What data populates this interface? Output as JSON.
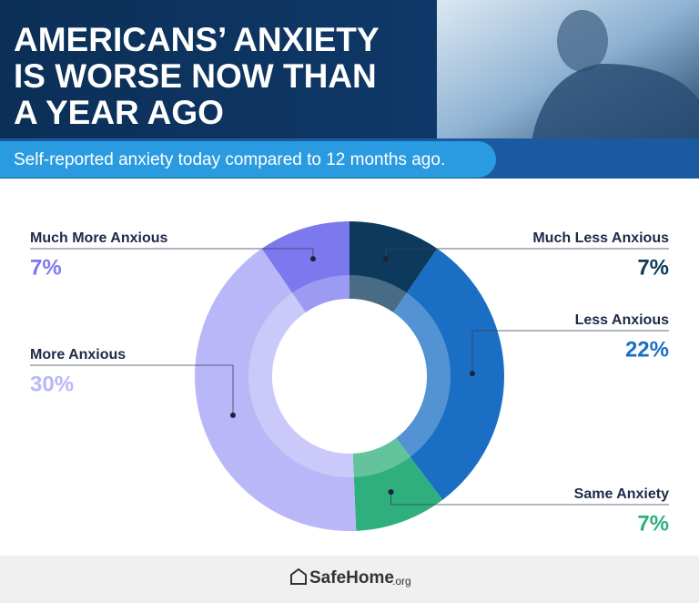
{
  "chart_data": {
    "type": "pie",
    "title": [
      "AMERICANS’ ANXIETY",
      "IS WORSE  NOW THAN",
      "A YEAR AGO"
    ],
    "subtitle": "Self-reported anxiety today compared to 12 months ago.",
    "categories": [
      "Much Less Anxious",
      "Less Anxious",
      "Same Anxiety",
      "More Anxious",
      "Much More Anxious"
    ],
    "values": [
      7,
      22,
      7,
      30,
      7
    ],
    "value_labels": [
      "7%",
      "22%",
      "7%",
      "30%",
      "7%"
    ],
    "colors": [
      "#0d3a5c",
      "#1a6fc4",
      "#2eaf7d",
      "#b9b7f8",
      "#7c79ef"
    ],
    "donut": true
  },
  "footer": {
    "brand": "SafeHome",
    "suffix": ".org"
  }
}
